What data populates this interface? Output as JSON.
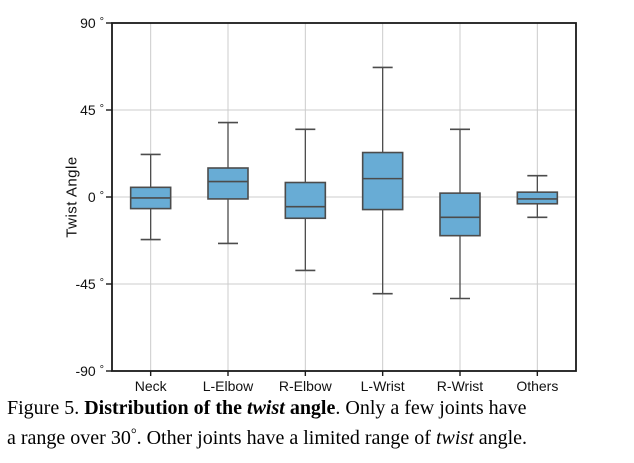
{
  "chart_data": {
    "type": "boxplot",
    "title": "",
    "xlabel": "",
    "ylabel": "Twist Angle",
    "categories": [
      "Neck",
      "L-Elbow",
      "R-Elbow",
      "L-Wrist",
      "R-Wrist",
      "Others"
    ],
    "ylim": [
      -90,
      90
    ],
    "yticks": [
      -90,
      -45,
      0,
      45,
      90
    ],
    "ytick_labels": [
      "-90°",
      "-45°",
      "0°",
      "45°",
      "90°"
    ],
    "grid": true,
    "series": [
      {
        "category": "Neck",
        "whisker_low": -22,
        "q1": -6,
        "median": -0.5,
        "q3": 5,
        "whisker_high": 22
      },
      {
        "category": "L-Elbow",
        "whisker_low": -24,
        "q1": -1,
        "median": 8,
        "q3": 15,
        "whisker_high": 38.5
      },
      {
        "category": "R-Elbow",
        "whisker_low": -38,
        "q1": -11,
        "median": -5,
        "q3": 7.5,
        "whisker_high": 35
      },
      {
        "category": "L-Wrist",
        "whisker_low": -50,
        "q1": -6.5,
        "median": 9.5,
        "q3": 23,
        "whisker_high": 67
      },
      {
        "category": "R-Wrist",
        "whisker_low": -52.5,
        "q1": -20,
        "median": -10.5,
        "q3": 2,
        "whisker_high": 35
      },
      {
        "category": "Others",
        "whisker_low": -10.5,
        "q1": -3.5,
        "median": -1,
        "q3": 2.5,
        "whisker_high": 11
      }
    ],
    "colors": {
      "box_fill": "#68acd5",
      "box_edge": "#4c4c4c",
      "whisker": "#4c4c4c",
      "grid": "#cccccc",
      "frame": "#1a1a1a"
    }
  },
  "caption": {
    "prefix": "Figure 5. ",
    "bold_pre": "Distribution of the ",
    "bold_italic": "twist",
    "bold_post": " angle",
    "mid": ". Only a few joints have",
    "line2": "a range over 30",
    "degree": "°",
    "mid2": ". Other joints have a limited range of ",
    "italic2": "twist",
    "suffix": " angle."
  }
}
